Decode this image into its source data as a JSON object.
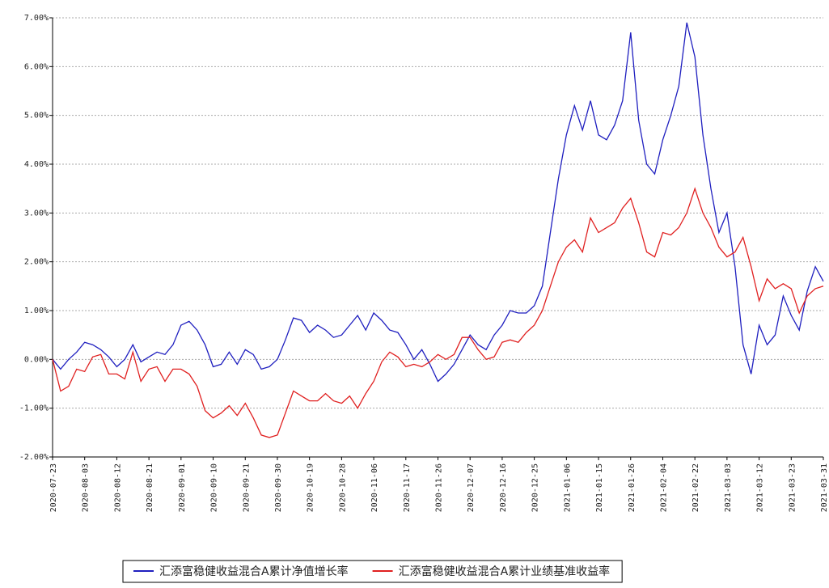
{
  "chart_data": {
    "type": "line",
    "categories": [
      "2020-07-23",
      null,
      null,
      null,
      "2020-08-03",
      null,
      null,
      null,
      "2020-08-12",
      null,
      null,
      null,
      "2020-08-21",
      null,
      null,
      null,
      "2020-09-01",
      null,
      null,
      null,
      "2020-09-10",
      null,
      null,
      null,
      "2020-09-21",
      null,
      null,
      null,
      "2020-09-30",
      null,
      null,
      null,
      "2020-10-19",
      null,
      null,
      null,
      "2020-10-28",
      null,
      null,
      null,
      "2020-11-06",
      null,
      null,
      null,
      "2020-11-17",
      null,
      null,
      null,
      "2020-11-26",
      null,
      null,
      null,
      "2020-12-07",
      null,
      null,
      null,
      "2020-12-16",
      null,
      null,
      null,
      "2020-12-25",
      null,
      null,
      null,
      "2021-01-06",
      null,
      null,
      null,
      "2021-01-15",
      null,
      null,
      null,
      "2021-01-26",
      null,
      null,
      null,
      "2021-02-04",
      null,
      null,
      null,
      "2021-02-22",
      null,
      null,
      null,
      "2021-03-03",
      null,
      null,
      null,
      "2021-03-12",
      null,
      null,
      null,
      "2021-03-23",
      null,
      null,
      null,
      "2021-03-31"
    ],
    "series": [
      {
        "name": "汇添富稳健收益混合A累计净值增长率",
        "color": "#1f1fbf",
        "values": [
          0,
          -0.2,
          0.0,
          0.15,
          0.35,
          0.3,
          0.2,
          0.05,
          -0.15,
          0.0,
          0.3,
          -0.05,
          0.05,
          0.15,
          0.1,
          0.3,
          0.7,
          0.78,
          0.6,
          0.3,
          -0.15,
          -0.1,
          0.15,
          -0.1,
          0.2,
          0.1,
          -0.2,
          -0.15,
          0.0,
          0.4,
          0.85,
          0.8,
          0.55,
          0.7,
          0.6,
          0.45,
          0.5,
          0.7,
          0.9,
          0.6,
          0.95,
          0.8,
          0.6,
          0.55,
          0.3,
          0.0,
          0.2,
          -0.1,
          -0.45,
          -0.3,
          -0.1,
          0.2,
          0.5,
          0.3,
          0.2,
          0.5,
          0.7,
          1.0,
          0.95,
          0.95,
          1.1,
          1.5,
          2.6,
          3.7,
          4.6,
          5.2,
          4.7,
          5.3,
          4.6,
          4.5,
          4.8,
          5.3,
          6.7,
          4.9,
          4.0,
          3.8,
          4.5,
          5.0,
          5.6,
          6.9,
          6.2,
          4.6,
          3.5,
          2.6,
          3.0,
          1.9,
          0.3,
          -0.3,
          0.7,
          0.3,
          0.5,
          1.3,
          0.9,
          0.6,
          1.4,
          1.9,
          1.6
        ]
      },
      {
        "name": "汇添富稳健收益混合A累计业绩基准收益率",
        "color": "#e02020",
        "values": [
          0,
          -0.65,
          -0.55,
          -0.2,
          -0.25,
          0.05,
          0.1,
          -0.3,
          -0.3,
          -0.4,
          0.15,
          -0.45,
          -0.2,
          -0.15,
          -0.45,
          -0.2,
          -0.2,
          -0.3,
          -0.55,
          -1.05,
          -1.2,
          -1.1,
          -0.95,
          -1.15,
          -0.9,
          -1.2,
          -1.55,
          -1.6,
          -1.55,
          -1.1,
          -0.65,
          -0.75,
          -0.85,
          -0.85,
          -0.7,
          -0.85,
          -0.9,
          -0.75,
          -1.0,
          -0.7,
          -0.45,
          -0.05,
          0.15,
          0.05,
          -0.15,
          -0.1,
          -0.15,
          -0.05,
          0.1,
          0.0,
          0.1,
          0.45,
          0.45,
          0.2,
          0.0,
          0.05,
          0.35,
          0.4,
          0.35,
          0.55,
          0.7,
          1.0,
          1.5,
          2.0,
          2.3,
          2.45,
          2.2,
          2.9,
          2.6,
          2.7,
          2.8,
          3.1,
          3.3,
          2.8,
          2.2,
          2.1,
          2.6,
          2.55,
          2.7,
          3.0,
          3.5,
          3.0,
          2.7,
          2.3,
          2.1,
          2.2,
          2.5,
          1.9,
          1.2,
          1.65,
          1.45,
          1.55,
          1.45,
          0.95,
          1.3,
          1.45,
          1.5
        ]
      }
    ],
    "ylim": [
      -2,
      7
    ],
    "yticks": [
      {
        "value": -2,
        "label": "-2.00%"
      },
      {
        "value": -1,
        "label": "-1.00%"
      },
      {
        "value": 0,
        "label": "0.00%"
      },
      {
        "value": 1,
        "label": "1.00%"
      },
      {
        "value": 2,
        "label": "2.00%"
      },
      {
        "value": 3,
        "label": "3.00%"
      },
      {
        "value": 4,
        "label": "4.00%"
      },
      {
        "value": 5,
        "label": "5.00%"
      },
      {
        "value": 6,
        "label": "6.00%"
      },
      {
        "value": 7,
        "label": "7.00%"
      }
    ],
    "grid": true,
    "legend": "bottom"
  }
}
